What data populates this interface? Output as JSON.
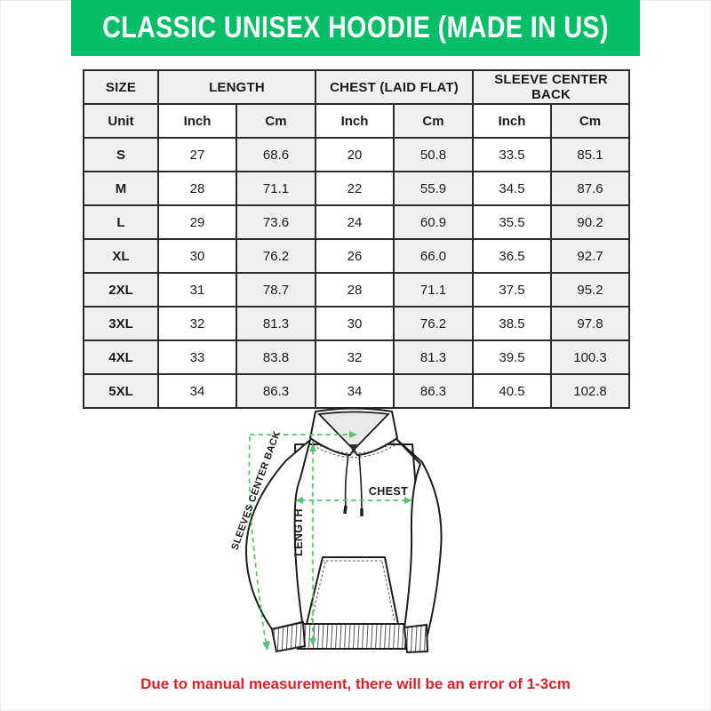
{
  "header": {
    "title": "CLASSIC UNISEX HOODIE (MADE IN US)",
    "bg_color": "#06bd68",
    "text_color": "#ffffff"
  },
  "chart_data": {
    "type": "table",
    "title": "CLASSIC UNISEX HOODIE (MADE IN US)",
    "column_groups": [
      "SIZE",
      "LENGTH",
      "CHEST (LAID FLAT)",
      "SLEEVE CENTER BACK"
    ],
    "unit_row": [
      "Unit",
      "Inch",
      "Cm",
      "Inch",
      "Cm",
      "Inch",
      "Cm"
    ],
    "rows": [
      {
        "size": "S",
        "values": [
          "27",
          "68.6",
          "20",
          "50.8",
          "33.5",
          "85.1"
        ]
      },
      {
        "size": "M",
        "values": [
          "28",
          "71.1",
          "22",
          "55.9",
          "34.5",
          "87.6"
        ]
      },
      {
        "size": "L",
        "values": [
          "29",
          "73.6",
          "24",
          "60.9",
          "35.5",
          "90.2"
        ]
      },
      {
        "size": "XL",
        "values": [
          "30",
          "76.2",
          "26",
          "66.0",
          "36.5",
          "92.7"
        ]
      },
      {
        "size": "2XL",
        "values": [
          "31",
          "78.7",
          "28",
          "71.1",
          "37.5",
          "95.2"
        ]
      },
      {
        "size": "3XL",
        "values": [
          "32",
          "81.3",
          "30",
          "76.2",
          "38.5",
          "97.8"
        ]
      },
      {
        "size": "4XL",
        "values": [
          "33",
          "83.8",
          "32",
          "81.3",
          "39.5",
          "100.3"
        ]
      },
      {
        "size": "5XL",
        "values": [
          "34",
          "86.3",
          "34",
          "86.3",
          "40.5",
          "102.8"
        ]
      }
    ]
  },
  "diagram": {
    "sleeve_label": "SLEEVES CENTER BACK",
    "chest_label": "CHEST",
    "length_label": "LENGTH",
    "line_color": "#57c36e"
  },
  "footer": {
    "note": "Due to manual measurement, there will be an error of 1-3cm",
    "color": "#e02128"
  }
}
